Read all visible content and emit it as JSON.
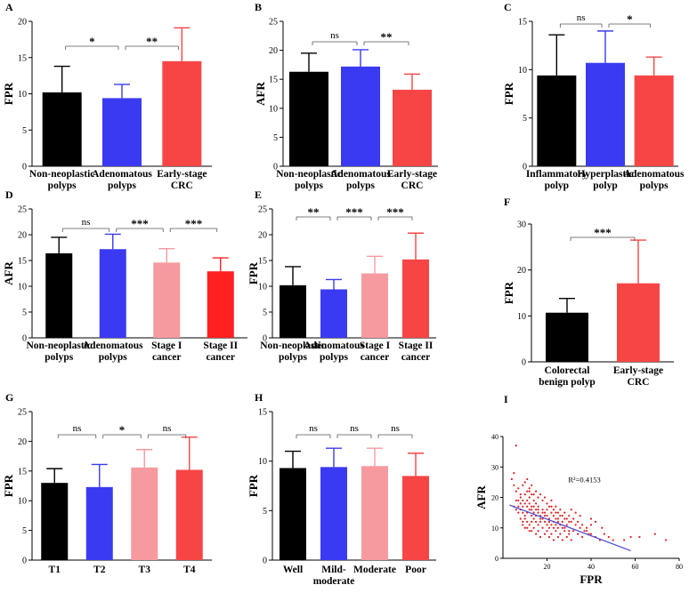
{
  "figure": {
    "colors": {
      "black": "#000000",
      "blue": "#3a3af2",
      "red": "#f74545",
      "pink": "#f79aa0",
      "pure_red": "#ff2020",
      "scatter": "#e02020",
      "fit": "#4b4bd6"
    }
  },
  "chart_data": [
    {
      "panel": "A",
      "type": "bar",
      "ylabel": "FPR",
      "ylim": [
        0,
        20
      ],
      "yticks": [
        0,
        5,
        10,
        15,
        20
      ],
      "categories": [
        [
          "Non-neoplastic",
          "polyps"
        ],
        [
          "Adenomatous",
          "polyps"
        ],
        [
          "Early-stage",
          "CRC"
        ]
      ],
      "values": [
        10.2,
        9.4,
        14.5
      ],
      "errors": [
        3.6,
        1.9,
        4.6
      ],
      "colors": [
        "black",
        "blue",
        "red"
      ],
      "significance": [
        {
          "from": 0,
          "to": 1,
          "label": "*"
        },
        {
          "from": 1,
          "to": 2,
          "label": "**"
        }
      ]
    },
    {
      "panel": "B",
      "type": "bar",
      "ylabel": "AFR",
      "ylim": [
        0,
        25
      ],
      "yticks": [
        0,
        5,
        10,
        15,
        20,
        25
      ],
      "categories": [
        [
          "Non-neoplastic",
          "polyps"
        ],
        [
          "Adenomatous",
          "polyps"
        ],
        [
          "Early-stage",
          "CRC"
        ]
      ],
      "values": [
        16.3,
        17.2,
        13.2
      ],
      "errors": [
        3.2,
        2.9,
        2.7
      ],
      "colors": [
        "black",
        "blue",
        "red"
      ],
      "significance": [
        {
          "from": 0,
          "to": 1,
          "label": "ns"
        },
        {
          "from": 1,
          "to": 2,
          "label": "**"
        }
      ]
    },
    {
      "panel": "C",
      "type": "bar",
      "ylabel": "FPR",
      "ylim": [
        0,
        15
      ],
      "yticks": [
        0,
        5,
        10,
        15
      ],
      "categories": [
        [
          "Inflammatory",
          "polyp"
        ],
        [
          "Hyperplastic",
          "polyp"
        ],
        [
          "Adenomatous",
          "polyps"
        ]
      ],
      "values": [
        9.4,
        10.7,
        9.4
      ],
      "errors": [
        4.2,
        3.3,
        1.9
      ],
      "colors": [
        "black",
        "blue",
        "red"
      ],
      "significance": [
        {
          "from": 0,
          "to": 1,
          "label": "ns"
        },
        {
          "from": 1,
          "to": 2,
          "label": "*"
        }
      ]
    },
    {
      "panel": "D",
      "type": "bar",
      "ylabel": "AFR",
      "ylim": [
        0,
        25
      ],
      "yticks": [
        0,
        5,
        10,
        15,
        20,
        25
      ],
      "categories": [
        [
          "Non-neoplastic",
          "polyps"
        ],
        [
          "Adenomatous",
          "polyps"
        ],
        [
          "Stage I",
          "cancer"
        ],
        [
          "Stage II",
          "cancer"
        ]
      ],
      "values": [
        16.4,
        17.2,
        14.6,
        12.9
      ],
      "errors": [
        3.1,
        2.9,
        2.7,
        2.6
      ],
      "colors": [
        "black",
        "blue",
        "pink",
        "pure_red"
      ],
      "significance": [
        {
          "from": 0,
          "to": 1,
          "label": "ns"
        },
        {
          "from": 1,
          "to": 2,
          "label": "***"
        },
        {
          "from": 2,
          "to": 3,
          "label": "***"
        }
      ]
    },
    {
      "panel": "E",
      "type": "bar",
      "ylabel": "FPR",
      "ylim": [
        0,
        25
      ],
      "yticks": [
        0,
        5,
        10,
        15,
        20,
        25
      ],
      "categories": [
        [
          "Non-neoplastic",
          "polyps"
        ],
        [
          "Adenomatous",
          "polyps"
        ],
        [
          "Stage I",
          "cancer"
        ],
        [
          "Stage II",
          "cancer"
        ]
      ],
      "values": [
        10.2,
        9.4,
        12.5,
        15.2
      ],
      "errors": [
        3.6,
        1.9,
        3.3,
        5.1
      ],
      "colors": [
        "black",
        "blue",
        "pink",
        "red"
      ],
      "significance": [
        {
          "from": 0,
          "to": 1,
          "label": "**"
        },
        {
          "from": 1,
          "to": 2,
          "label": "***"
        },
        {
          "from": 2,
          "to": 3,
          "label": "***"
        }
      ]
    },
    {
      "panel": "F",
      "type": "bar",
      "ylabel": "FPR",
      "ylim": [
        0,
        30
      ],
      "yticks": [
        0,
        10,
        20,
        30
      ],
      "categories": [
        [
          "Colorectal",
          "benign polyp"
        ],
        [
          "Early-stage",
          "CRC"
        ]
      ],
      "values": [
        10.7,
        17.1
      ],
      "errors": [
        3.1,
        9.4
      ],
      "colors": [
        "black",
        "red"
      ],
      "significance": [
        {
          "from": 0,
          "to": 1,
          "label": "***"
        }
      ]
    },
    {
      "panel": "G",
      "type": "bar",
      "ylabel": "FPR",
      "ylim": [
        0,
        25
      ],
      "yticks": [
        0,
        5,
        10,
        15,
        20,
        25
      ],
      "categories": [
        [
          "T1"
        ],
        [
          "T2"
        ],
        [
          "T3"
        ],
        [
          "T4"
        ]
      ],
      "values": [
        13.0,
        12.3,
        15.6,
        15.2
      ],
      "errors": [
        2.4,
        3.8,
        3.0,
        5.5
      ],
      "colors": [
        "black",
        "blue",
        "pink",
        "red"
      ],
      "significance": [
        {
          "from": 0,
          "to": 1,
          "label": "ns"
        },
        {
          "from": 1,
          "to": 2,
          "label": "*"
        },
        {
          "from": 2,
          "to": 3,
          "label": "ns"
        }
      ]
    },
    {
      "panel": "H",
      "type": "bar",
      "ylabel": "FPR",
      "ylim": [
        0,
        15
      ],
      "yticks": [
        0,
        5,
        10,
        15
      ],
      "categories": [
        [
          "Well"
        ],
        [
          "Mild-",
          "moderate"
        ],
        [
          "Moderate"
        ],
        [
          "Poor"
        ]
      ],
      "values": [
        9.3,
        9.4,
        9.5,
        8.5
      ],
      "errors": [
        1.7,
        1.9,
        1.8,
        2.3
      ],
      "colors": [
        "black",
        "blue",
        "pink",
        "red"
      ],
      "significance": [
        {
          "from": 0,
          "to": 1,
          "label": "ns"
        },
        {
          "from": 1,
          "to": 2,
          "label": "ns"
        },
        {
          "from": 2,
          "to": 3,
          "label": "ns"
        }
      ]
    },
    {
      "panel": "I",
      "type": "scatter",
      "xlabel": "FPR",
      "ylabel": "AFR",
      "xlim": [
        0,
        80
      ],
      "ylim": [
        0,
        40
      ],
      "xticks": [
        20,
        40,
        60,
        80
      ],
      "yticks": [
        0,
        10,
        20,
        30,
        40
      ],
      "annotation": "R²=0.4153",
      "fit": {
        "x": [
          3,
          58
        ],
        "y": [
          17.5,
          2.5
        ]
      },
      "points": [
        [
          6,
          37
        ],
        [
          5,
          28
        ],
        [
          4,
          26
        ],
        [
          5,
          24
        ],
        [
          6,
          22
        ],
        [
          7,
          23
        ],
        [
          8,
          21
        ],
        [
          9,
          24
        ],
        [
          10,
          25
        ],
        [
          11,
          22
        ],
        [
          12,
          23
        ],
        [
          13,
          21
        ],
        [
          7,
          19
        ],
        [
          8,
          18
        ],
        [
          9,
          19
        ],
        [
          10,
          18
        ],
        [
          11,
          19
        ],
        [
          12,
          18
        ],
        [
          13,
          17
        ],
        [
          14,
          19
        ],
        [
          15,
          18
        ],
        [
          16,
          17
        ],
        [
          5,
          17
        ],
        [
          6,
          16
        ],
        [
          7,
          15
        ],
        [
          8,
          16
        ],
        [
          9,
          15
        ],
        [
          10,
          14
        ],
        [
          11,
          15
        ],
        [
          12,
          16
        ],
        [
          13,
          14
        ],
        [
          14,
          15
        ],
        [
          15,
          16
        ],
        [
          16,
          15
        ],
        [
          17,
          14
        ],
        [
          18,
          16
        ],
        [
          19,
          15
        ],
        [
          20,
          14
        ],
        [
          21,
          13
        ],
        [
          22,
          15
        ],
        [
          23,
          14
        ],
        [
          24,
          13
        ],
        [
          25,
          12
        ],
        [
          8,
          13
        ],
        [
          9,
          12
        ],
        [
          10,
          13
        ],
        [
          11,
          12
        ],
        [
          12,
          11
        ],
        [
          13,
          12
        ],
        [
          14,
          13
        ],
        [
          15,
          12
        ],
        [
          16,
          11
        ],
        [
          17,
          12
        ],
        [
          18,
          13
        ],
        [
          19,
          12
        ],
        [
          20,
          11
        ],
        [
          21,
          12
        ],
        [
          22,
          11
        ],
        [
          23,
          10
        ],
        [
          24,
          11
        ],
        [
          25,
          10
        ],
        [
          26,
          11
        ],
        [
          27,
          12
        ],
        [
          28,
          10
        ],
        [
          29,
          11
        ],
        [
          30,
          9
        ],
        [
          10,
          10
        ],
        [
          12,
          9
        ],
        [
          14,
          10
        ],
        [
          16,
          9
        ],
        [
          18,
          10
        ],
        [
          20,
          9
        ],
        [
          22,
          8
        ],
        [
          24,
          9
        ],
        [
          26,
          8
        ],
        [
          28,
          9
        ],
        [
          30,
          8
        ],
        [
          32,
          9
        ],
        [
          34,
          8
        ],
        [
          36,
          7
        ],
        [
          38,
          9
        ],
        [
          40,
          8
        ],
        [
          42,
          7
        ],
        [
          44,
          6
        ],
        [
          46,
          8
        ],
        [
          48,
          7
        ],
        [
          50,
          6
        ],
        [
          12,
          20
        ],
        [
          14,
          21
        ],
        [
          16,
          20
        ],
        [
          18,
          19
        ],
        [
          20,
          18
        ],
        [
          22,
          19
        ],
        [
          24,
          17
        ],
        [
          26,
          16
        ],
        [
          28,
          15
        ],
        [
          30,
          14
        ],
        [
          32,
          13
        ],
        [
          34,
          12
        ],
        [
          36,
          11
        ],
        [
          38,
          10
        ],
        [
          40,
          11
        ],
        [
          42,
          12
        ],
        [
          11,
          26
        ],
        [
          13,
          24
        ],
        [
          15,
          22
        ],
        [
          17,
          21
        ],
        [
          19,
          20
        ],
        [
          21,
          17
        ],
        [
          23,
          16
        ],
        [
          25,
          15
        ],
        [
          27,
          14
        ],
        [
          29,
          13
        ],
        [
          31,
          12
        ],
        [
          33,
          11
        ],
        [
          35,
          10
        ],
        [
          37,
          9
        ],
        [
          39,
          8
        ],
        [
          9,
          11
        ],
        [
          11,
          10
        ],
        [
          13,
          9
        ],
        [
          15,
          8
        ],
        [
          17,
          7
        ],
        [
          19,
          8
        ],
        [
          21,
          7
        ],
        [
          23,
          6
        ],
        [
          25,
          7
        ],
        [
          27,
          6
        ],
        [
          29,
          7
        ],
        [
          31,
          6
        ],
        [
          8,
          20
        ],
        [
          10,
          21
        ],
        [
          12,
          22
        ],
        [
          14,
          17
        ],
        [
          16,
          16
        ],
        [
          18,
          15
        ],
        [
          20,
          16
        ],
        [
          22,
          17
        ],
        [
          24,
          15
        ],
        [
          26,
          14
        ],
        [
          28,
          13
        ],
        [
          30,
          12
        ],
        [
          6,
          19
        ],
        [
          7,
          17
        ],
        [
          9,
          17
        ],
        [
          11,
          17
        ],
        [
          13,
          16
        ],
        [
          15,
          14
        ],
        [
          17,
          13
        ],
        [
          19,
          14
        ],
        [
          21,
          10
        ],
        [
          23,
          12
        ],
        [
          25,
          13
        ],
        [
          27,
          10
        ],
        [
          55,
          6
        ],
        [
          58,
          7
        ],
        [
          62,
          7
        ],
        [
          69,
          8
        ],
        [
          74,
          6
        ],
        [
          45,
          10
        ],
        [
          35,
          14
        ],
        [
          33,
          15
        ],
        [
          31,
          16
        ],
        [
          40,
          13
        ]
      ]
    }
  ]
}
